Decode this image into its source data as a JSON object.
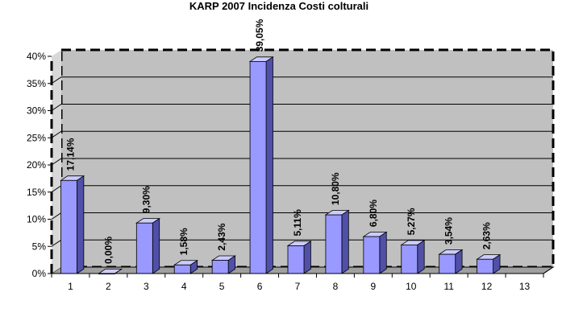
{
  "chart_data": {
    "type": "bar",
    "title": "KARP 2007 Incidenza  Costi colturali",
    "categories": [
      "1",
      "2",
      "3",
      "4",
      "5",
      "6",
      "7",
      "8",
      "9",
      "10",
      "11",
      "12",
      "13"
    ],
    "values": [
      17.14,
      0.0,
      9.3,
      1.58,
      2.43,
      39.05,
      5.11,
      10.8,
      6.8,
      5.27,
      3.54,
      2.63,
      null
    ],
    "data_labels": [
      "17,14%",
      "0,00%",
      "9,30%",
      "1,58%",
      "2,43%",
      "39,05%",
      "5,11%",
      "10,80%",
      "6,80%",
      "5,27%",
      "3,54%",
      "2,63%",
      ""
    ],
    "y_ticks": [
      "0%",
      "5%",
      "10%",
      "15%",
      "20%",
      "25%",
      "30%",
      "35%",
      "40%"
    ],
    "ylim": [
      0,
      40
    ],
    "grid": true,
    "xlabel": "",
    "ylabel": "",
    "colors": {
      "bar_front": "#9999ff",
      "bar_top": "#ccccff",
      "bar_side": "#5050a8",
      "wall": "#c0c0c0",
      "floor": "#a0a0a0",
      "grid": "#000000"
    }
  }
}
